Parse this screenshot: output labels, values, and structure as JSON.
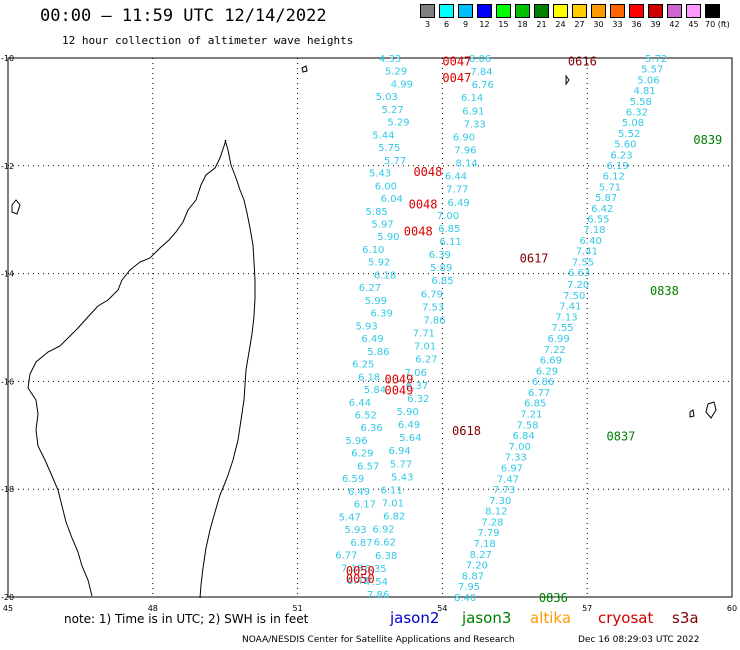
{
  "title": "00:00 – 11:59 UTC 12/14/2022",
  "subtitle": "12 hour collection of altimeter wave heights",
  "legend": {
    "labels": [
      "3",
      "6",
      "9",
      "12",
      "15",
      "18",
      "21",
      "24",
      "27",
      "30",
      "33",
      "36",
      "39",
      "42",
      "45",
      "70 (ft)"
    ],
    "colors": [
      "#808080",
      "#00ffff",
      "#00bfff",
      "#0000ff",
      "#00ff00",
      "#00bf00",
      "#008000",
      "#ffff00",
      "#ffcc00",
      "#ff9900",
      "#ff6600",
      "#ff0000",
      "#cc0000",
      "#cc66cc",
      "#ff99ff",
      "#000000"
    ]
  },
  "axes": {
    "lon_ticks": [
      {
        "text": "45",
        "lon": 45
      },
      {
        "text": "48",
        "lon": 48
      },
      {
        "text": "51",
        "lon": 51
      },
      {
        "text": "54",
        "lon": 54
      },
      {
        "text": "57",
        "lon": 57
      },
      {
        "text": "60",
        "lon": 60
      }
    ],
    "lat_ticks": [
      {
        "text": "-10",
        "lat": -10
      },
      {
        "text": "-12",
        "lat": -12
      },
      {
        "text": "-14",
        "lat": -14
      },
      {
        "text": "-16",
        "lat": -16
      },
      {
        "text": "-18",
        "lat": -18
      },
      {
        "text": "-20",
        "lat": -20
      }
    ]
  },
  "tracks": {
    "left_column": {
      "color": "#33c9e6",
      "values": [
        "4.33",
        "5.29",
        "4.99",
        "5.03",
        "5.27",
        "5.29",
        "5.44",
        "5.75",
        "5.77",
        "5.43",
        "6.00",
        "6.04",
        "5.85",
        "5.97",
        "5.90",
        "6.10",
        "5.92",
        "6.18",
        "6.27",
        "5.99",
        "6.39",
        "5.93",
        "6.49",
        "5.86",
        "6.25",
        "6.18",
        "5.84",
        "6.44",
        "6.52",
        "6.36",
        "5.96",
        "6.29",
        "6.57",
        "6.59",
        "6.49",
        "6.17",
        "5.47",
        "5.93",
        "6.87",
        "6.77",
        "7.18",
        "6.45"
      ]
    },
    "middle_column": {
      "color": "#33c9e6",
      "values": [
        "8.06",
        "7.84",
        "6.76",
        "6.14",
        "6.91",
        "7.33",
        "6.90",
        "7.96",
        "8.14",
        "6.44",
        "7.77",
        "6.49",
        "7.00",
        "6.85",
        "6.11",
        "6.39",
        "5.89",
        "6.85",
        "6.79",
        "7.53",
        "7.86",
        "7.71",
        "7.01",
        "6.27",
        "7.06",
        "6.37",
        "6.32",
        "5.90",
        "6.49",
        "5.64",
        "6.94",
        "5.77",
        "5.43",
        "6.11",
        "7.01",
        "6.82",
        "6.92",
        "6.62",
        "6.38",
        "6.35",
        "7.54",
        "7.86"
      ]
    },
    "right_track_lower": {
      "color": "#33c9e6",
      "values": [
        "7.20",
        "7.50",
        "7.41",
        "7.13",
        "7.55",
        "6.99",
        "7.22",
        "6.69",
        "6.29",
        "6.86",
        "6.77",
        "6.85",
        "7.21",
        "7.58",
        "6.84",
        "7.00",
        "7.33",
        "6.97",
        "7.47",
        "7.73",
        "7.30",
        "8.12",
        "7.28",
        "7.79",
        "7.18",
        "8.27",
        "7.20",
        "8.87",
        "7.95",
        "8.40"
      ]
    },
    "right_track_upper": {
      "color": "#33c9e6",
      "values": [
        "5.72",
        "5.57",
        "5.06",
        "4.81",
        "5.58",
        "6.32",
        "5.08",
        "5.52",
        "5.60",
        "6.23",
        "6.19",
        "6.12",
        "5.71",
        "5.87",
        "6.42",
        "6.55",
        "7.18",
        "6.40",
        "7.41",
        "7.55",
        "6.63"
      ]
    }
  },
  "time_labels": [
    {
      "text": "0047",
      "color": "#dd0000",
      "lon": 54.0,
      "lat": -10.05
    },
    {
      "text": "0616",
      "color": "#800000",
      "lon": 56.6,
      "lat": -10.05
    },
    {
      "text": "0047",
      "color": "#dd0000",
      "lon": 54.0,
      "lat": -10.35
    },
    {
      "text": "0839",
      "color": "#008000",
      "lon": 59.2,
      "lat": -11.5
    },
    {
      "text": "0048",
      "color": "#dd0000",
      "lon": 53.4,
      "lat": -12.1
    },
    {
      "text": "0048",
      "color": "#dd0000",
      "lon": 53.3,
      "lat": -12.7
    },
    {
      "text": "0048",
      "color": "#dd0000",
      "lon": 53.2,
      "lat": -13.2
    },
    {
      "text": "0617",
      "color": "#800000",
      "lon": 55.6,
      "lat": -13.7
    },
    {
      "text": "0838",
      "color": "#008000",
      "lon": 58.3,
      "lat": -14.3
    },
    {
      "text": "0049",
      "color": "#dd0000",
      "lon": 52.8,
      "lat": -15.95
    },
    {
      "text": "0049",
      "color": "#dd0000",
      "lon": 52.8,
      "lat": -16.15
    },
    {
      "text": "0618",
      "color": "#800000",
      "lon": 54.2,
      "lat": -16.9
    },
    {
      "text": "0837",
      "color": "#008000",
      "lon": 57.4,
      "lat": -17.0
    },
    {
      "text": "0050",
      "color": "#dd0000",
      "lon": 52.0,
      "lat": -19.5
    },
    {
      "text": "0050",
      "color": "#dd0000",
      "lon": 52.0,
      "lat": -19.65
    },
    {
      "text": "0836",
      "color": "#008000",
      "lon": 56.0,
      "lat": -20.0
    }
  ],
  "note": "note: 1) Time is in UTC; 2) SWH is in feet",
  "satellites": [
    {
      "name": "jason2",
      "color": "#0000cc"
    },
    {
      "name": "jason3",
      "color": "#008000"
    },
    {
      "name": "altika",
      "color": "#ff9900"
    },
    {
      "name": "cryosat",
      "color": "#cc0000"
    },
    {
      "name": "s3a",
      "color": "#800000"
    }
  ],
  "credit": "NOAA/NESDIS Center for Satellite Applications and Research",
  "credit_date": "Dec 16 08:29:03 UTC 2022"
}
